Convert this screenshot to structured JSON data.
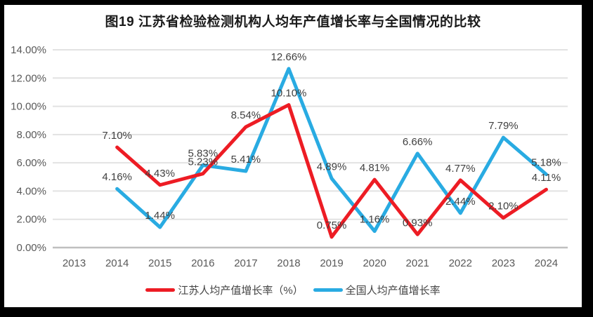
{
  "title": "图19 江苏省检验检测机构人均年产值增长率与全国情况的比较",
  "chart_data": {
    "type": "line",
    "categories": [
      "2013",
      "2014",
      "2015",
      "2016",
      "2017",
      "2018",
      "2019",
      "2020",
      "2021",
      "2022",
      "2023",
      "2024"
    ],
    "series": [
      {
        "name": "江苏人均产值增长率（%）",
        "color": "#ED1C24",
        "values": [
          null,
          7.1,
          4.43,
          5.23,
          8.54,
          10.1,
          0.75,
          4.81,
          0.93,
          4.77,
          2.1,
          4.11
        ],
        "labels": [
          "",
          "7.10%",
          "4.43%",
          "5.23%",
          "8.54%",
          "10.10%",
          "0.75%",
          "4.81%",
          "0.93%",
          "4.77%",
          "2.10%",
          "4.11%"
        ]
      },
      {
        "name": "全国人均产值增长率",
        "color": "#29ABE2",
        "values": [
          null,
          4.16,
          1.44,
          5.83,
          5.41,
          12.66,
          4.89,
          1.16,
          6.66,
          2.44,
          7.79,
          5.18
        ],
        "labels": [
          "",
          "4.16%",
          "1.44%",
          "5.83%",
          "5.41%",
          "12.66%",
          "4.89%",
          "1.16%",
          "6.66%",
          "2.44%",
          "7.79%",
          "5.18%"
        ]
      }
    ],
    "y_ticks": [
      "0.00%",
      "2.00%",
      "4.00%",
      "6.00%",
      "8.00%",
      "10.00%",
      "12.00%",
      "14.00%"
    ],
    "ylim": [
      0,
      14
    ],
    "grid": true,
    "legend_position": "bottom"
  },
  "theme": {
    "frame": "#000000",
    "background": "#FFFFFF",
    "grid": "#E2E2E2",
    "axis": "#BFBFBF",
    "tick_label": "#595959",
    "data_label": "#3F3F3F",
    "title_color": "#1A1A1A"
  }
}
